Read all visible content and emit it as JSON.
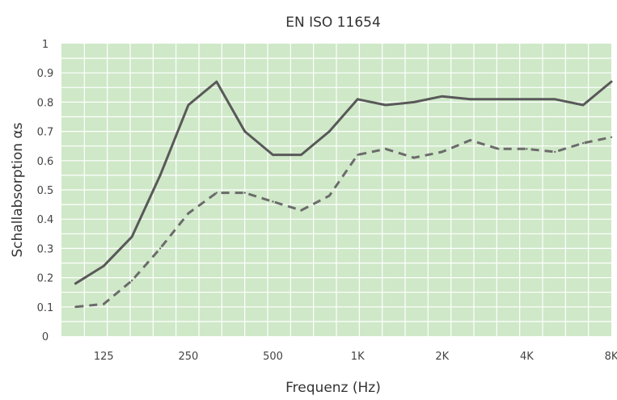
{
  "chart_data": {
    "type": "line",
    "title": "EN ISO 11654",
    "xlabel": "Frequenz (Hz)",
    "ylabel": "Schallabsorption αs",
    "ylim": [
      0,
      1
    ],
    "y_ticks": [
      "0",
      "0.1",
      "0.2",
      "0.3",
      "0.4",
      "0.5",
      "0.6",
      "0.7",
      "0.8",
      "0.9",
      "1"
    ],
    "x_frequencies_hz": [
      100,
      125,
      160,
      200,
      250,
      315,
      400,
      500,
      630,
      800,
      1000,
      1250,
      1600,
      2000,
      2500,
      3150,
      4000,
      5000,
      6300,
      8000
    ],
    "x_tick_labels": [
      "125",
      "250",
      "500",
      "1K",
      "2K",
      "4K",
      "8K"
    ],
    "x_scale": "log",
    "grid": true,
    "plot_background": "#cfe8c8",
    "grid_color": "#ffffff",
    "series": [
      {
        "style": "solid",
        "color": "#595959",
        "values": [
          0.18,
          0.24,
          0.34,
          0.55,
          0.79,
          0.87,
          0.7,
          0.62,
          0.62,
          0.7,
          0.81,
          0.79,
          0.8,
          0.82,
          0.81,
          0.81,
          0.81,
          0.81,
          0.79,
          0.87
        ]
      },
      {
        "style": "dashed",
        "color": "#6b6b6b",
        "values": [
          0.1,
          0.11,
          0.19,
          0.3,
          0.42,
          0.49,
          0.49,
          0.46,
          0.43,
          0.48,
          0.62,
          0.64,
          0.61,
          0.63,
          0.67,
          0.64,
          0.64,
          0.63,
          0.66,
          0.68
        ]
      }
    ]
  }
}
